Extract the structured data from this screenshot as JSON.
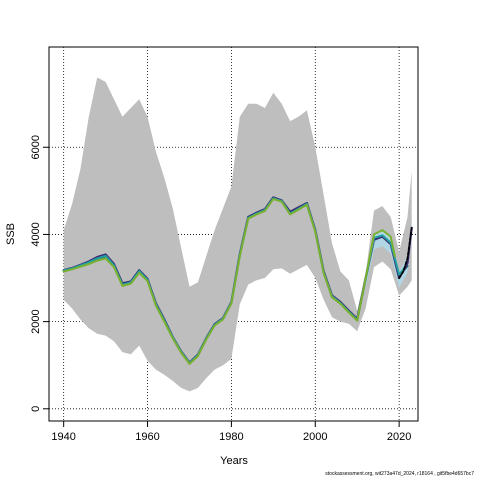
{
  "chart_data": {
    "type": "line",
    "xlabel": "Years",
    "ylabel": "SSB",
    "xlim": [
      1936.5,
      2024.5
    ],
    "ylim": [
      -280,
      8300
    ],
    "x_ticks": [
      1940,
      1960,
      1980,
      2000,
      2020
    ],
    "y_ticks": [
      0,
      2000,
      4000,
      6000
    ],
    "grid": true,
    "footer": "stockassessment.org, wit273a47d_2024, r18164 , git5fbe4d657bc7",
    "colors": {
      "ci_band": "#bebebe",
      "ci_band_latest": "#add8e6",
      "grid": "#000000",
      "series": [
        "#3a2a74",
        "#22a0a0",
        "#1e5a78",
        "#7ab030",
        "#000000"
      ]
    },
    "ci_band": {
      "x": [
        1940,
        1942,
        1944,
        1946,
        1948,
        1950,
        1952,
        1954,
        1956,
        1958,
        1960,
        1962,
        1964,
        1966,
        1968,
        1970,
        1972,
        1974,
        1976,
        1978,
        1980,
        1982,
        1984,
        1986,
        1988,
        1990,
        1992,
        1994,
        1996,
        1998,
        2000,
        2002,
        2004,
        2006,
        2008,
        2010,
        2012,
        2014,
        2016,
        2018,
        2020,
        2022,
        2023
      ],
      "lower": [
        2500,
        2300,
        2050,
        1850,
        1720,
        1680,
        1550,
        1300,
        1250,
        1450,
        1100,
        900,
        780,
        640,
        480,
        400,
        480,
        700,
        900,
        1000,
        1150,
        2400,
        2850,
        2950,
        3000,
        3200,
        3220,
        3100,
        3200,
        3300,
        3000,
        2500,
        2100,
        2000,
        1950,
        1780,
        2300,
        3250,
        3380,
        3200,
        2600,
        2800,
        2950
      ],
      "upper": [
        4100,
        4700,
        5500,
        6700,
        7600,
        7500,
        7100,
        6700,
        6900,
        7100,
        6700,
        5900,
        5300,
        4600,
        3700,
        2800,
        2900,
        3500,
        4100,
        4600,
        5100,
        6700,
        7000,
        7000,
        6900,
        7250,
        7000,
        6600,
        6700,
        6850,
        6000,
        4900,
        3800,
        3150,
        2950,
        2250,
        3100,
        4550,
        4650,
        4400,
        3600,
        4400,
        5450
      ]
    },
    "series": [
      {
        "x": [
          1940,
          1942,
          1944,
          1946,
          1948,
          1950,
          1952,
          1954,
          1956,
          1958,
          1960,
          1962,
          1964,
          1966,
          1968,
          1970,
          1972,
          1974,
          1976,
          1978,
          1980,
          1982,
          1984,
          1986,
          1988,
          1990,
          1992,
          1994,
          1996,
          1998,
          2000,
          2002,
          2004,
          2006,
          2008,
          2010,
          2012,
          2014,
          2016,
          2018,
          2020,
          2022,
          2023
        ],
        "values": [
          3180,
          3230,
          3300,
          3380,
          3480,
          3540,
          3320,
          2880,
          2920,
          3180,
          2980,
          2420,
          2050,
          1650,
          1320,
          1060,
          1240,
          1620,
          1940,
          2080,
          2450,
          3550,
          4400,
          4500,
          4580,
          4850,
          4780,
          4520,
          4620,
          4720,
          4100,
          3150,
          2600,
          2450,
          2250,
          2060,
          3000,
          3880,
          3950,
          3780,
          3000,
          3350,
          4150
        ]
      },
      {
        "x": [
          1940,
          1942,
          1944,
          1946,
          1948,
          1950,
          1952,
          1954,
          1956,
          1958,
          1960,
          1962,
          1964,
          1966,
          1968,
          1970,
          1972,
          1974,
          1976,
          1978,
          1980,
          1982,
          1984,
          1986,
          1988,
          1990,
          1992,
          1994,
          1996,
          1998,
          2000,
          2002,
          2004,
          2006,
          2008,
          2010,
          2012,
          2014,
          2016,
          2018,
          2020,
          2021
        ],
        "values": [
          3170,
          3220,
          3290,
          3360,
          3450,
          3510,
          3290,
          2850,
          2900,
          3160,
          2960,
          2400,
          2030,
          1640,
          1310,
          1050,
          1230,
          1610,
          1930,
          2070,
          2440,
          3530,
          4380,
          4480,
          4560,
          4830,
          4770,
          4480,
          4590,
          4700,
          4080,
          3130,
          2580,
          2430,
          2230,
          2040,
          2980,
          3920,
          3980,
          3810,
          3080,
          3200
        ]
      },
      {
        "x": [
          1940,
          1942,
          1944,
          1946,
          1948,
          1950,
          1952,
          1954,
          1956,
          1958,
          1960,
          1962,
          1964,
          1966,
          1968,
          1970,
          1972,
          1974,
          1976,
          1978,
          1980,
          1982,
          1984,
          1986,
          1988,
          1990,
          1992,
          1994,
          1996,
          1998,
          2000,
          2002,
          2004,
          2006,
          2008,
          2010,
          2012,
          2014,
          2016,
          2018,
          2020,
          2022
        ],
        "values": [
          3160,
          3210,
          3280,
          3350,
          3440,
          3490,
          3280,
          2840,
          2890,
          3150,
          2950,
          2390,
          2020,
          1630,
          1300,
          1040,
          1220,
          1600,
          1920,
          2060,
          2430,
          3520,
          4370,
          4470,
          4550,
          4820,
          4760,
          4470,
          4580,
          4690,
          4070,
          3120,
          2570,
          2420,
          2220,
          2030,
          2970,
          3900,
          3960,
          3800,
          3050,
          3280
        ]
      },
      {
        "x": [
          1940,
          1942,
          1944,
          1946,
          1948,
          1950,
          1952,
          1954,
          1956,
          1958,
          1960,
          1962,
          1964,
          1966,
          1968,
          1970,
          1972,
          1974,
          1976,
          1978,
          1980,
          1982,
          1984,
          1986,
          1988,
          1990,
          1992,
          1994,
          1996,
          1998,
          2000,
          2002,
          2004,
          2006,
          2008,
          2010,
          2012,
          2014,
          2016,
          2018,
          2019
        ],
        "values": [
          3150,
          3200,
          3260,
          3320,
          3400,
          3450,
          3250,
          2820,
          2870,
          3120,
          2930,
          2370,
          2000,
          1620,
          1290,
          1030,
          1210,
          1590,
          1910,
          2050,
          2420,
          3500,
          4360,
          4460,
          4540,
          4810,
          4750,
          4460,
          4570,
          4680,
          4060,
          3110,
          2560,
          2410,
          2210,
          2020,
          2990,
          4000,
          4100,
          3950,
          3500
        ]
      },
      {
        "x": [
          2020,
          2021,
          2022,
          2023
        ],
        "values": [
          3000,
          3150,
          3450,
          4150
        ]
      }
    ]
  }
}
